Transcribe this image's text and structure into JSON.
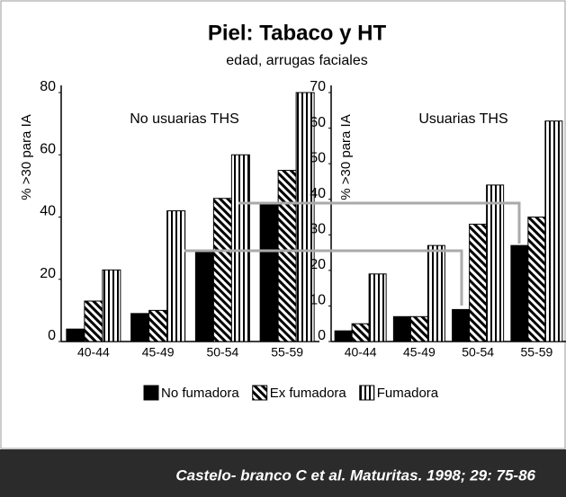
{
  "title": "Piel: Tabaco y HT",
  "subtitle": "edad, arrugas faciales",
  "citation": "Castelo- branco C et al. Maturitas. 1998; 29: 75-86",
  "chart_data": [
    {
      "type": "bar",
      "subtitle": "No usuarias THS",
      "ylabel": "% >30 para IA",
      "categories": [
        "40-44",
        "45-49",
        "50-54",
        "55-59"
      ],
      "ylim": [
        0,
        80
      ],
      "yticks": [
        0,
        20,
        40,
        60,
        80
      ],
      "series": [
        {
          "name": "No fumadora",
          "color": "#000000",
          "pattern": "solid",
          "values": [
            4,
            9,
            29,
            44
          ]
        },
        {
          "name": "Ex fumadora",
          "color": "#000000",
          "pattern": "diagonal",
          "values": [
            13,
            10,
            46,
            55
          ]
        },
        {
          "name": "Fumadora",
          "color": "#000000",
          "pattern": "vertical",
          "values": [
            23,
            42,
            60,
            80
          ]
        }
      ]
    },
    {
      "type": "bar",
      "subtitle": "Usuarias THS",
      "ylabel": "% >30 para IA",
      "categories": [
        "40-44",
        "45-49",
        "50-54",
        "55-59"
      ],
      "ylim": [
        0,
        70
      ],
      "yticks": [
        0,
        10,
        20,
        30,
        40,
        50,
        60,
        70
      ],
      "series": [
        {
          "color": "#000000",
          "pattern": "solid",
          "values": [
            3,
            7,
            9,
            27
          ]
        },
        {
          "color": "#000000",
          "pattern": "diagonal",
          "values": [
            5,
            7,
            33,
            35
          ]
        },
        {
          "color": "#000000",
          "pattern": "vertical",
          "values": [
            19,
            27,
            44,
            62
          ]
        }
      ]
    }
  ]
}
